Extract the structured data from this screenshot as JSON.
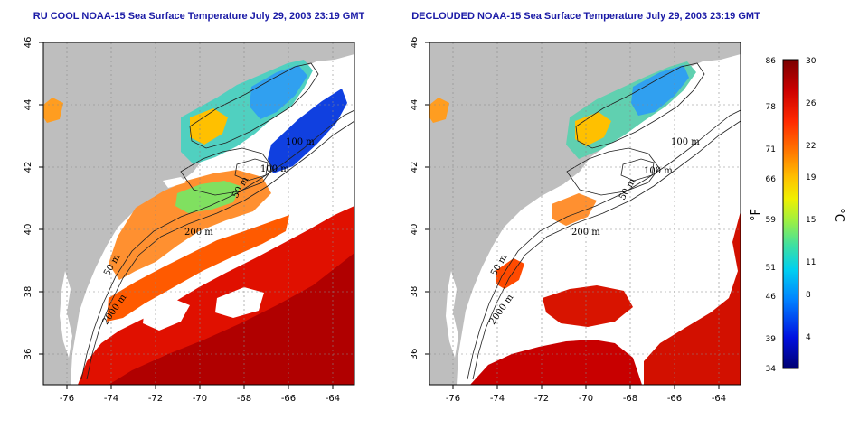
{
  "maps": [
    {
      "id": "left",
      "title": "RU COOL NOAA-15 Sea Surface Temperature July 29, 2003 23:19 GMT",
      "x_ticks": [
        "-76",
        "-74",
        "-72",
        "-70",
        "-68",
        "-66",
        "-64"
      ],
      "y_ticks": [
        "46",
        "44",
        "42",
        "40",
        "38",
        "36"
      ],
      "contour_labels": [
        "100 m",
        "100 m",
        "50 m",
        "200 m",
        "50 m",
        "2000 m"
      ]
    },
    {
      "id": "right",
      "title": "DECLOUDED NOAA-15 Sea Surface Temperature July 29, 2003 23:19 GMT",
      "x_ticks": [
        "-76",
        "-74",
        "-72",
        "-70",
        "-68",
        "-66",
        "-64"
      ],
      "y_ticks": [
        "46",
        "44",
        "42",
        "40",
        "38",
        "36"
      ],
      "contour_labels": [
        "100 m",
        "100 m",
        "50 m",
        "200 m",
        "50 m",
        "2000 m"
      ]
    }
  ],
  "colorbar": {
    "fahrenheit_ticks": [
      "86",
      "78",
      "71",
      "66",
      "59",
      "51",
      "46",
      "39",
      "34"
    ],
    "celsius_ticks": [
      "30",
      "26",
      "22",
      "19",
      "15",
      "11",
      "8",
      "4"
    ],
    "fahrenheit_unit": "°F",
    "celsius_unit": "°C",
    "colors": [
      "#8b0000",
      "#d40000",
      "#ff3000",
      "#ff8000",
      "#ffc000",
      "#f0f000",
      "#a0f050",
      "#40e0b0",
      "#00c8f0",
      "#0080ff",
      "#0000d0",
      "#000080"
    ]
  },
  "colors": {
    "land": "#bebebe",
    "cloud": "#ffffff",
    "title": "#1a1aa6"
  }
}
